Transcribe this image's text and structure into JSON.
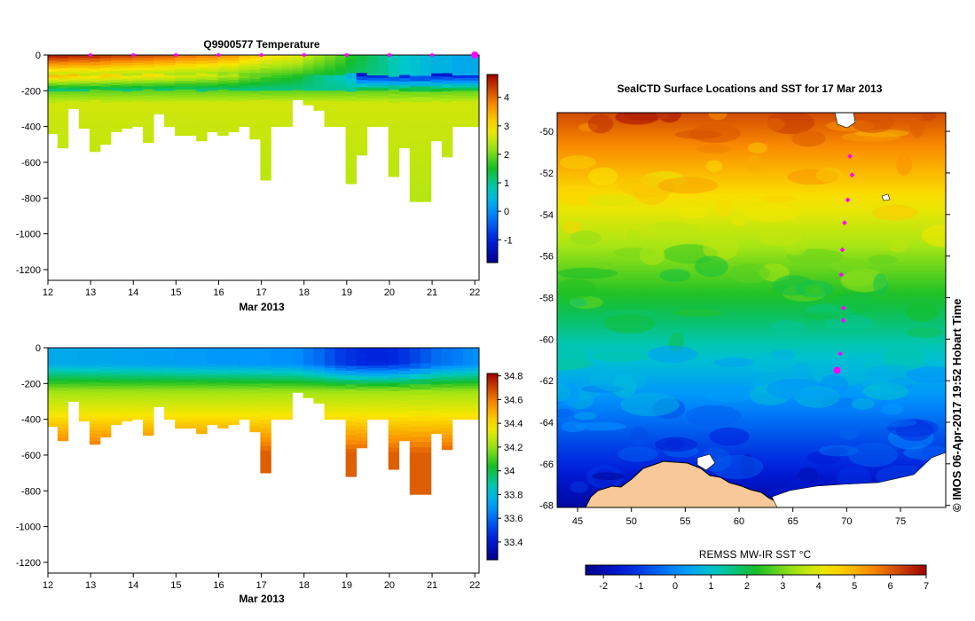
{
  "chart_data": [
    {
      "type": "heatmap",
      "title": "Q9900577  Temperature",
      "xlabel": "Mar 2013",
      "ylabel": "",
      "x_ticks": [
        "12",
        "13",
        "14",
        "15",
        "16",
        "17",
        "18",
        "19",
        "20",
        "21",
        "22"
      ],
      "xlim": [
        12,
        22.1
      ],
      "y_ticks": [
        "0",
        "-200",
        "-400",
        "-600",
        "-800",
        "-1000",
        "-1200"
      ],
      "ylim": [
        -1260,
        0
      ],
      "colorbar_ticks": [
        "4",
        "3",
        "2",
        "1",
        "0",
        "-1"
      ],
      "colorbar_range": [
        -1.8,
        4.8
      ],
      "profile_times": [
        12.1,
        12.35,
        12.6,
        12.85,
        13.1,
        13.35,
        13.6,
        13.85,
        14.1,
        14.35,
        14.6,
        14.85,
        15.1,
        15.35,
        15.6,
        15.85,
        16.1,
        16.35,
        16.6,
        16.85,
        17.1,
        17.35,
        17.6,
        17.85,
        18.1,
        18.35,
        18.6,
        18.85,
        19.1,
        19.35,
        19.6,
        19.85,
        20.1,
        20.35,
        20.6,
        20.85,
        21.1,
        21.35,
        21.6,
        21.85,
        22.05
      ],
      "profile_depths": [
        440,
        520,
        300,
        410,
        540,
        500,
        430,
        410,
        400,
        490,
        330,
        400,
        450,
        450,
        480,
        430,
        450,
        430,
        400,
        470,
        700,
        400,
        400,
        250,
        280,
        310,
        400,
        400,
        720,
        560,
        400,
        400,
        680,
        520,
        820,
        820,
        480,
        570,
        400,
        400,
        400
      ],
      "surface_values": [
        4.7,
        4.7,
        4.6,
        4.6,
        4.6,
        4.5,
        4.4,
        4.4,
        4.3,
        4.3,
        4.2,
        4.2,
        4.0,
        4.0,
        3.9,
        3.9,
        3.7,
        3.7,
        3.4,
        3.3,
        3.1,
        3.0,
        2.9,
        2.8,
        2.5,
        2.3,
        2.1,
        1.9,
        1.6,
        1.4,
        1.2,
        1.0,
        0.8,
        0.7,
        0.6,
        0.5,
        0.4,
        0.4,
        0.3,
        0.3,
        0.3
      ],
      "markers": [
        13,
        14,
        15,
        16,
        17,
        18,
        19,
        20,
        21,
        22
      ]
    },
    {
      "type": "heatmap",
      "title": "",
      "xlabel": "Mar 2013",
      "ylabel": "",
      "x_ticks": [
        "12",
        "13",
        "14",
        "15",
        "16",
        "17",
        "18",
        "19",
        "20",
        "21",
        "22"
      ],
      "xlim": [
        12,
        22.1
      ],
      "y_ticks": [
        "0",
        "-200",
        "-400",
        "-600",
        "-800",
        "-1000",
        "-1200"
      ],
      "ylim": [
        -1260,
        0
      ],
      "colorbar_ticks": [
        "34.8",
        "34.6",
        "34.4",
        "34.2",
        "34",
        "33.8",
        "33.6",
        "33.4"
      ],
      "colorbar_range": [
        33.25,
        34.82
      ],
      "surface_values": [
        33.75,
        33.75,
        33.75,
        33.74,
        33.74,
        33.74,
        33.73,
        33.73,
        33.73,
        33.72,
        33.72,
        33.72,
        33.71,
        33.71,
        33.71,
        33.7,
        33.7,
        33.7,
        33.69,
        33.69,
        33.69,
        33.68,
        33.68,
        33.67,
        33.63,
        33.6,
        33.55,
        33.5,
        33.48,
        33.46,
        33.45,
        33.45,
        33.46,
        33.48,
        33.52,
        33.56,
        33.6,
        33.62,
        33.64,
        33.66,
        33.68
      ]
    },
    {
      "type": "heatmap",
      "title": "SealCTD Surface Locations and SST for 17 Mar 2013",
      "xlabel": "",
      "ylabel": "",
      "x_ticks": [
        "45",
        "50",
        "55",
        "60",
        "65",
        "70",
        "75"
      ],
      "xlim": [
        43.1,
        79.2
      ],
      "y_ticks": [
        "-50",
        "-52",
        "-54",
        "-56",
        "-58",
        "-60",
        "-62",
        "-64",
        "-66",
        "-68"
      ],
      "ylim": [
        -68.1,
        -49.1
      ],
      "colorbar_label": "REMSS MW-IR SST °C",
      "colorbar_ticks": [
        "-2",
        "-1",
        "0",
        "1",
        "2",
        "3",
        "4",
        "5",
        "6",
        "7"
      ],
      "colorbar_range": [
        -2.5,
        7
      ],
      "track_positions": [
        [
          70.3,
          -51.2
        ],
        [
          70.5,
          -52.1
        ],
        [
          70.1,
          -53.3
        ],
        [
          69.8,
          -54.4
        ],
        [
          69.6,
          -55.7
        ],
        [
          69.5,
          -56.9
        ],
        [
          69.7,
          -58.5
        ],
        [
          69.7,
          -59.1
        ],
        [
          69.4,
          -60.7
        ]
      ],
      "current_position": [
        69.1,
        -61.5
      ],
      "credit": "© IMOS 06-Apr-2017 19:52 Hobart Time"
    }
  ]
}
